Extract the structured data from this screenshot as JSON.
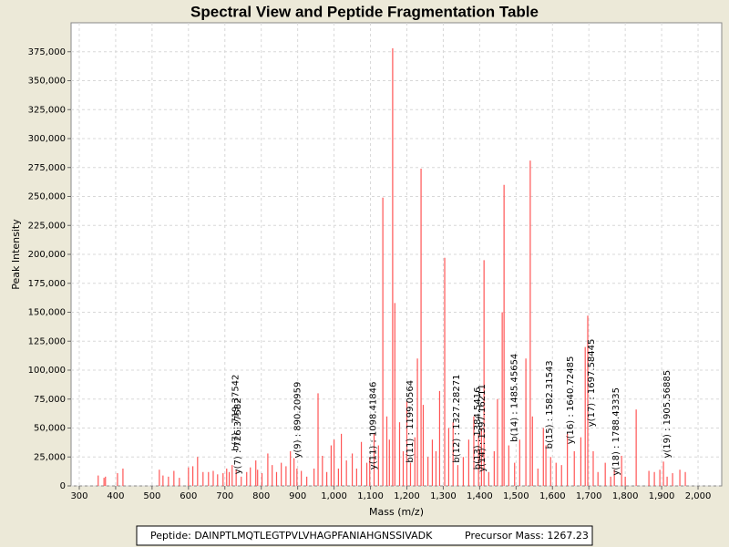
{
  "chart_data": {
    "type": "stem",
    "title": "Spectral View and Peptide Fragmentation Table",
    "x_label": "Mass (m/z)",
    "y_label": "Peak Intensity",
    "color": "#ff5555",
    "grid": true,
    "xlim": [
      277.5,
      2065
    ],
    "ylim": [
      0,
      400000
    ],
    "xticks": [
      300,
      400,
      500,
      600,
      700,
      800,
      900,
      {
        "value": 1000,
        "label": "1,000"
      },
      {
        "value": 1100,
        "label": "1,100"
      },
      {
        "value": 1200,
        "label": "1,200"
      },
      {
        "value": 1300,
        "label": "1,300"
      },
      {
        "value": 1400,
        "label": "1,400"
      },
      {
        "value": 1500,
        "label": "1,500"
      },
      {
        "value": 1600,
        "label": "1,600"
      },
      {
        "value": 1700,
        "label": "1,700"
      },
      {
        "value": 1800,
        "label": "1,800"
      },
      {
        "value": 1900,
        "label": "1,900"
      },
      {
        "value": 2000,
        "label": "2,000"
      }
    ],
    "yticks": [
      0,
      {
        "value": 25000,
        "label": "25,000"
      },
      {
        "value": 50000,
        "label": "50,000"
      },
      {
        "value": 75000,
        "label": "75,000"
      },
      {
        "value": 100000,
        "label": "100,000"
      },
      {
        "value": 125000,
        "label": "125,000"
      },
      {
        "value": 150000,
        "label": "150,000"
      },
      {
        "value": 175000,
        "label": "175,000"
      },
      {
        "value": 200000,
        "label": "200,000"
      },
      {
        "value": 225000,
        "label": "225,000"
      },
      {
        "value": 250000,
        "label": "250,000"
      },
      {
        "value": 275000,
        "label": "275,000"
      },
      {
        "value": 300000,
        "label": "300,000"
      },
      {
        "value": 325000,
        "label": "325,000"
      },
      {
        "value": 350000,
        "label": "350,000"
      },
      {
        "value": 375000,
        "label": "375,000"
      }
    ],
    "x": [
      352,
      368,
      372,
      405,
      420,
      520,
      530,
      545,
      560,
      575,
      600,
      612,
      625,
      640,
      655,
      668,
      680,
      695,
      705,
      712,
      720,
      731,
      745,
      760,
      770,
      785,
      790,
      802,
      818,
      830,
      842,
      855,
      868,
      880,
      890,
      898,
      910,
      925,
      945,
      956,
      968,
      980,
      992,
      1000,
      1012,
      1020,
      1034,
      1050,
      1062,
      1075,
      1090,
      1098,
      1110,
      1122,
      1134,
      1145,
      1152,
      1161,
      1167,
      1180,
      1190,
      1200,
      1210,
      1222,
      1229,
      1239,
      1245,
      1258,
      1270,
      1280,
      1290,
      1304,
      1315,
      1327,
      1340,
      1355,
      1370,
      1384,
      1397,
      1405,
      1412,
      1425,
      1440,
      1449,
      1462,
      1467,
      1480,
      1496,
      1510,
      1527,
      1539,
      1545,
      1560,
      1575,
      1582,
      1595,
      1610,
      1625,
      1641,
      1660,
      1678,
      1690,
      1697,
      1712,
      1725,
      1745,
      1760,
      1770,
      1790,
      1800,
      1830,
      1865,
      1880,
      1895,
      1905,
      1915,
      1930,
      1950,
      1965
    ],
    "values": [
      9000,
      7000,
      8000,
      11000,
      15000,
      14000,
      9000,
      8000,
      13000,
      7000,
      16000,
      17000,
      25000,
      12000,
      12000,
      13000,
      10000,
      11000,
      15000,
      12000,
      18000,
      14000,
      8000,
      12000,
      16000,
      22000,
      14000,
      11000,
      28000,
      18000,
      12000,
      20000,
      17000,
      30000,
      24000,
      15000,
      13000,
      8000,
      15000,
      80000,
      26000,
      12000,
      35000,
      40000,
      15000,
      45000,
      22000,
      28000,
      15000,
      38000,
      20000,
      25000,
      45000,
      35000,
      249000,
      60000,
      40000,
      378000,
      158000,
      55000,
      30000,
      73000,
      20000,
      42000,
      110000,
      274000,
      70000,
      25000,
      40000,
      30000,
      82000,
      197000,
      50000,
      55000,
      18000,
      25000,
      40000,
      60000,
      45000,
      50000,
      195000,
      12000,
      30000,
      75000,
      150000,
      260000,
      35000,
      20000,
      40000,
      110000,
      281000,
      60000,
      15000,
      50000,
      35000,
      25000,
      20000,
      18000,
      45000,
      30000,
      42000,
      120000,
      147000,
      30000,
      12000,
      20000,
      8000,
      14000,
      26000,
      8000,
      66000,
      13000,
      12000,
      14000,
      21000,
      8000,
      11000,
      14000,
      12000
    ],
    "annotations": [
      {
        "text": "b(7) : 719.37542",
        "mz": 719,
        "intensity": 30000
      },
      {
        "text": "y(7) : 726.37582",
        "mz": 726,
        "intensity": 10000
      },
      {
        "text": "y(9) : 890.20959",
        "mz": 890,
        "intensity": 24000
      },
      {
        "text": "y(11) : 1098.41846",
        "mz": 1098,
        "intensity": 14000
      },
      {
        "text": "b(11) : 1199.0564",
        "mz": 1199,
        "intensity": 20000
      },
      {
        "text": "b(12) : 1327.28271",
        "mz": 1327,
        "intensity": 20000
      },
      {
        "text": "b(13) : 1384.5416",
        "mz": 1384,
        "intensity": 14000
      },
      {
        "text": "y(14) : 1397.16211",
        "mz": 1397,
        "intensity": 12000
      },
      {
        "text": "b(14) : 1485.45654",
        "mz": 1485,
        "intensity": 38000
      },
      {
        "text": "b(15) : 1582.31543",
        "mz": 1582,
        "intensity": 32000
      },
      {
        "text": "y(16) : 1640.72485",
        "mz": 1640,
        "intensity": 36000
      },
      {
        "text": "y(17) : 1697.58445",
        "mz": 1697,
        "intensity": 51000
      },
      {
        "text": "y(18) : 1788.43335",
        "mz": 1765,
        "intensity": 9000
      },
      {
        "text": "y(19) : 1905.56885",
        "mz": 1905,
        "intensity": 24000
      }
    ]
  },
  "footer": {
    "peptide": "Peptide: DAINPTLMQTLEGTPVLVHAGPFANIAHGNSSIVADK",
    "precursor": "Precursor Mass: 1267.23"
  }
}
